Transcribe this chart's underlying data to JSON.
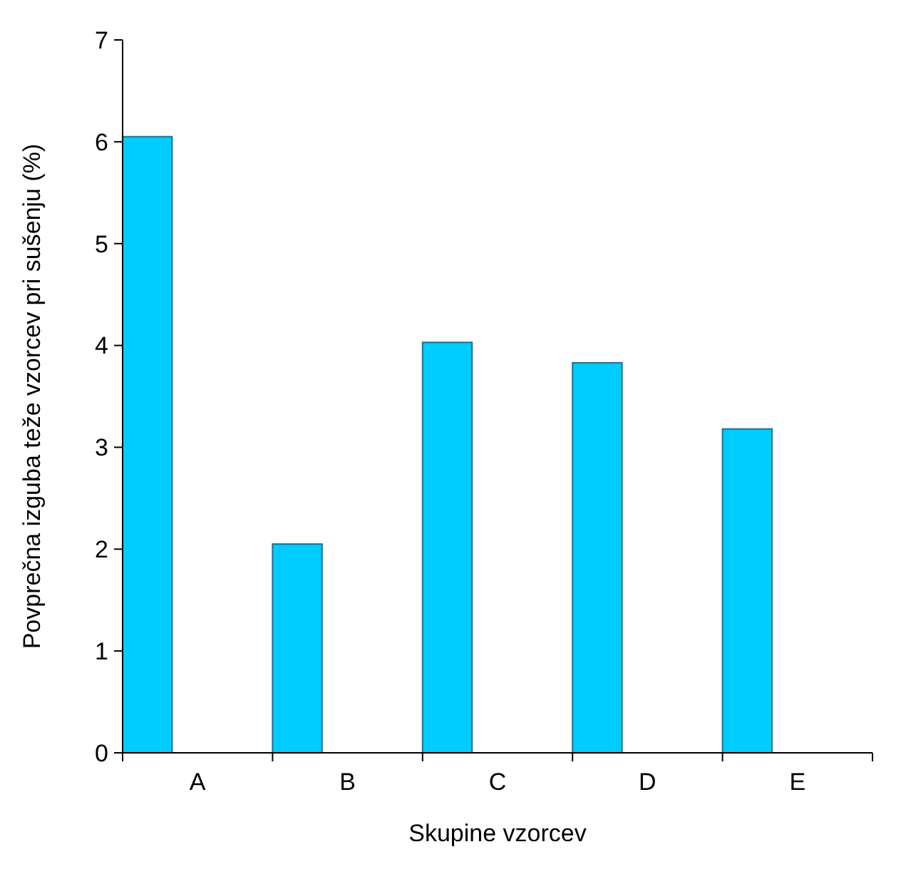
{
  "chart_data": {
    "type": "bar",
    "xlabel": "Skupine vzorcev",
    "ylabel": "Povprečna izguba teže vzorcev pri sušenju (%)",
    "categories": [
      "A",
      "B",
      "C",
      "D",
      "E"
    ],
    "values": [
      6.05,
      2.05,
      4.03,
      3.83,
      3.18
    ],
    "color": "#00ccff",
    "ylim": [
      0,
      7
    ],
    "yticks": [
      0,
      1,
      2,
      3,
      4,
      5,
      6,
      7
    ],
    "grid": false
  }
}
